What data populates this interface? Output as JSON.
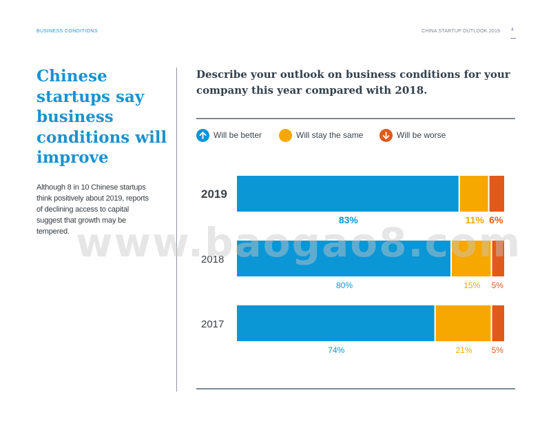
{
  "header": {
    "section_label": "BUSINESS CONDITIONS",
    "report_name": "CHINA STARTUP OUTLOOK 2019",
    "page_number": "4"
  },
  "headline": "Chinese startups say business conditions will improve",
  "body_text": "Although 8 in 10 Chinese startups think positively about 2019, reports of declining access to capital suggest that growth may be tempered.",
  "watermark": "www.baogao8.com",
  "colors": {
    "better": "#0b96d6",
    "same": "#f6a800",
    "worse": "#e05a1b",
    "year_label": "#3a3f45"
  },
  "legend": [
    {
      "label": "Will be better",
      "icon": "arrow-up-icon",
      "color": "#0b96d6"
    },
    {
      "label": "Will stay the same",
      "icon": "circle-icon",
      "color": "#f6a800"
    },
    {
      "label": "Will be worse",
      "icon": "arrow-down-icon",
      "color": "#e05a1b"
    }
  ],
  "chart_data": {
    "type": "bar",
    "orientation": "horizontal",
    "stacked": true,
    "title": "Describe your outlook on business conditions for your company this year compared with 2018.",
    "categories": [
      "2019",
      "2018",
      "2017"
    ],
    "series": [
      {
        "name": "Will be better",
        "values": [
          83,
          80,
          74
        ],
        "labels": [
          "83%",
          "80%",
          "74%"
        ]
      },
      {
        "name": "Will stay the same",
        "values": [
          11,
          15,
          21
        ],
        "labels": [
          "11%",
          "15%",
          "21%"
        ]
      },
      {
        "name": "Will be worse",
        "values": [
          6,
          5,
          5
        ],
        "labels": [
          "6%",
          "5%",
          "5%"
        ]
      }
    ],
    "highlight_category": "2019",
    "xlim": [
      0,
      100
    ],
    "grid": false,
    "legend_position": "top"
  }
}
